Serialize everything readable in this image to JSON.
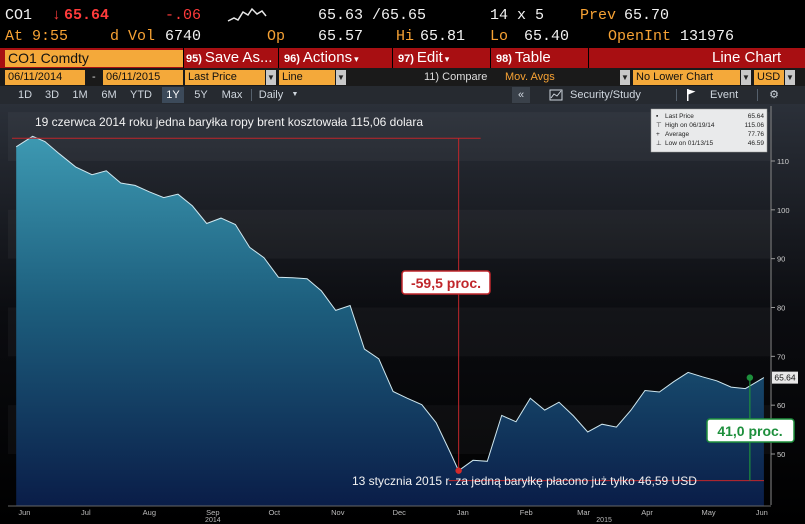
{
  "quote": {
    "ticker": "CO1",
    "last": "65.64",
    "change": "-.06",
    "bid_ask": "65.63 /65.65",
    "size": "14 x 5",
    "prev_label": "Prev",
    "prev": "65.70",
    "time": "At 9:55",
    "dvol_label": "d Vol",
    "dvol": "6740",
    "op_label": "Op",
    "op": "65.57",
    "hi_label": "Hi",
    "hi": "65.81",
    "lo_label": "Lo",
    "lo": "65.40",
    "openint_label": "OpenInt",
    "openint": "131976"
  },
  "menubar": {
    "security": "CO1 Comdty",
    "save_num": "95)",
    "save": "Save As...",
    "actions_num": "96)",
    "actions": "Actions",
    "edit_num": "97)",
    "edit": "Edit",
    "table_num": "98)",
    "table": "Table",
    "chart_type": "Line Chart"
  },
  "controls": {
    "start_date": "06/11/2014",
    "dash": "-",
    "end_date": "06/11/2015",
    "field": "Last Price",
    "style": "Line",
    "compare_num": "11)",
    "compare": "Compare",
    "mov_avgs": "Mov. Avgs",
    "lower_chart": "No Lower Chart",
    "currency": "USD"
  },
  "rangebar": {
    "ranges": [
      "1D",
      "3D",
      "1M",
      "6M",
      "YTD",
      "1Y",
      "5Y",
      "Max"
    ],
    "active": "1Y",
    "period": "Daily",
    "collapse": "«",
    "security_study": "Security/Study",
    "event": "Event"
  },
  "legend": {
    "last_price_label": "Last Price",
    "last_price": "65.64",
    "high_label": "High on 06/19/14",
    "high": "115.06",
    "average_label": "Average",
    "average": "77.76",
    "low_label": "Low on 01/13/15",
    "low": "46.59"
  },
  "annotations": {
    "top": "19 czerwca 2014 roku jedna baryłka ropy brent kosztowała 115,06 dolara",
    "drop": "-59,5 proc.",
    "bottom": "13 stycznia 2015 r. za jedną baryłkę płacono już tylko 46,59 USD",
    "rise": "41,0 proc.",
    "last_tag": "65.64"
  },
  "colors": {
    "accent_orange": "#f7a234",
    "menu_red": "#a80f12",
    "negative": "#ff3b3b",
    "high_line": "#c0262b",
    "rise_green": "#1d8f3c"
  },
  "chart_data": {
    "type": "area",
    "title": "",
    "xlabel": "",
    "ylabel": "",
    "ylim": [
      40,
      120
    ],
    "yticks": [
      50,
      60,
      70,
      80,
      90,
      100,
      110
    ],
    "x_month_labels": [
      "Jun",
      "Jul",
      "Aug",
      "Sep",
      "Oct",
      "Nov",
      "Dec",
      "Jan",
      "Feb",
      "Mar",
      "Apr",
      "May",
      "Jun"
    ],
    "x_year_labels": [
      "2014",
      "2015"
    ],
    "x": [
      "2014-06-11",
      "2014-06-19",
      "2014-06-25",
      "2014-07-02",
      "2014-07-10",
      "2014-07-18",
      "2014-07-25",
      "2014-08-01",
      "2014-08-08",
      "2014-08-15",
      "2014-08-22",
      "2014-08-29",
      "2014-09-05",
      "2014-09-12",
      "2014-09-19",
      "2014-09-26",
      "2014-10-03",
      "2014-10-10",
      "2014-10-17",
      "2014-10-24",
      "2014-10-31",
      "2014-11-07",
      "2014-11-14",
      "2014-11-21",
      "2014-11-28",
      "2014-12-05",
      "2014-12-12",
      "2014-12-19",
      "2014-12-26",
      "2015-01-02",
      "2015-01-09",
      "2015-01-13",
      "2015-01-20",
      "2015-01-27",
      "2015-02-03",
      "2015-02-10",
      "2015-02-17",
      "2015-02-24",
      "2015-03-03",
      "2015-03-10",
      "2015-03-17",
      "2015-03-24",
      "2015-03-31",
      "2015-04-07",
      "2015-04-14",
      "2015-04-21",
      "2015-04-28",
      "2015-05-05",
      "2015-05-12",
      "2015-05-19",
      "2015-05-26",
      "2015-06-02",
      "2015-06-11"
    ],
    "values": [
      112.9,
      115.06,
      114.0,
      111.5,
      108.8,
      107.2,
      108.0,
      105.5,
      105.0,
      103.7,
      102.5,
      103.2,
      100.8,
      97.2,
      98.3,
      97.0,
      92.3,
      90.2,
      86.2,
      86.1,
      85.9,
      83.4,
      79.4,
      80.4,
      71.5,
      69.5,
      62.8,
      61.4,
      60.1,
      56.4,
      50.2,
      46.59,
      48.7,
      48.5,
      57.9,
      56.6,
      61.4,
      59.0,
      60.6,
      57.8,
      54.5,
      56.1,
      55.5,
      58.9,
      63.0,
      62.7,
      64.8,
      66.7,
      65.8,
      65.0,
      63.7,
      63.4,
      65.64
    ],
    "high": {
      "date": "2014-06-19",
      "value": 115.06
    },
    "low": {
      "date": "2015-01-13",
      "value": 46.59
    },
    "last": 65.64,
    "average": 77.76,
    "grid": false,
    "legend": "top-right"
  }
}
